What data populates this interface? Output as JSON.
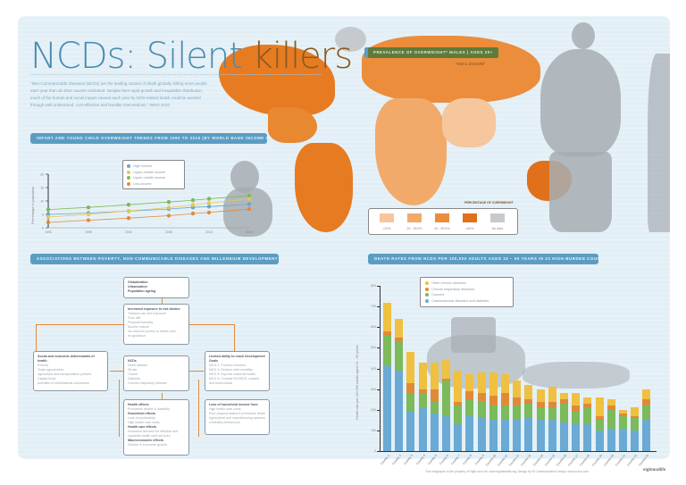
{
  "title": {
    "main": "NCDs: Silent ",
    "accent": "killers"
  },
  "intro": "\"Non-Communicable Diseases (NCDs) are the leading causes of death globally, killing more people each year than all other causes combined. Despite their rapid growth and inequitable distribution, much of the human and social impact caused each year by NCD-related death could be averted through well-understood, cost-effective and feasible interventions.\" WHO 2010",
  "map": {
    "header": "PREVALENCE OF OVERWEIGHT* MALES | AGES 20+",
    "subtitle": "*BMI ≥ 25KG/M²",
    "legend_title": "PERCENTAGE OF OVERWEIGHT",
    "legend": [
      {
        "label": "<20%",
        "color": "#f6c69c"
      },
      {
        "label": "20 - 39.9%",
        "color": "#f2aa6a"
      },
      {
        "label": "40 - 59.9%",
        "color": "#ec8d3c"
      },
      {
        "label": "≥60%",
        "color": "#e0701a"
      },
      {
        "label": "No data",
        "color": "#c6cacd"
      }
    ]
  },
  "line_section": {
    "header": "INFANT AND YOUNG CHILD OVERWEIGHT TRENDS FROM 1990 TO 2015 (BY WORLD BANK INCOME GROUP)"
  },
  "flow_section": {
    "header": "ASSOCIATIONS BETWEEN POVERTY, NON-COMMUNICABLE DISEASES AND MILLENNIUM DEVELOPMENT GOALS",
    "boxes": {
      "globalization": {
        "lines": [
          "Globalization",
          "Urbanization",
          "Population ageing"
        ]
      },
      "exposure": {
        "title": "Increased exposure to risk factors",
        "items": [
          "Tobacco use and exposure",
          "Poor diet",
          "Physical inactivity",
          "Alcohol misuse",
          "No-reduced access to health care",
          "for guidance"
        ]
      },
      "determinants": {
        "title": "Social and economic determinants of health",
        "items": [
          "Poverty",
          "Trade agreements",
          "Agriculture and transportation policies",
          "Capital flows",
          "Activities of multinational companies"
        ]
      },
      "ncds": {
        "title": "NCDs",
        "items": [
          "Heart disease",
          "Stroke",
          "Cancer",
          "Diabetes",
          "Chronic respiratory disease"
        ]
      },
      "mdg": {
        "title": "Limited ability to reach Development Goals",
        "items": [
          "MDG 1: Poverty reduction",
          "MDG 4: Reduce child mortality",
          "MDG 5: Improve maternal health",
          "MDG 6: Combat HIV/AIDS, malaria and tuberculosis"
        ]
      },
      "effects": {
        "title": "Health effects",
        "items": [
          "Premature deaths & disability",
          "Household effects",
          "Loss of productivity",
          "High health care costs",
          "Health care effects",
          "Increased demand for effective and equitable health care services",
          "Macroeconomic effects",
          "Decline in economic growth"
        ]
      },
      "income": {
        "title": "Loss of household income from",
        "items": [
          "High health care costs",
          "Poor physical status & premature death",
          "Agricultural and manufacturing systems",
          "Unhealthy behaviours"
        ]
      }
    }
  },
  "bar_section": {
    "header": "DEATH RATES FROM NCDS PER 100,000 ADULTS AGED 15 – 60 YEARS IN 23 HIGH-BURDEN COUNTRIES"
  },
  "footer": "This infographic is the property of Eight and Life: www.eightandlife.org; Design by SI Communication Design: www.si-lion.com",
  "logo": "eightandlife",
  "chart_data": [
    {
      "type": "line",
      "title": "Infant and young child overweight trends from 1990 to 2015 (by World Bank income group)",
      "xlabel": "",
      "ylabel": "Percentage of population",
      "x": [
        1990,
        1995,
        2000,
        2005,
        2008,
        2010,
        2015
      ],
      "xticks": [
        "1990",
        "1995",
        "2000",
        "2005",
        "2010",
        "2015"
      ],
      "yticks": [
        "0",
        "5",
        "10",
        "15",
        "20"
      ],
      "ylim": [
        0,
        20
      ],
      "legend_position": "top",
      "series": [
        {
          "name": "High income",
          "color": "#6aa4cf",
          "values": [
            5.0,
            5.5,
            6.2,
            7.0,
            7.6,
            7.9,
            8.8
          ]
        },
        {
          "name": "Upper-middle income",
          "color": "#e8c84a",
          "values": [
            4.0,
            5.0,
            6.3,
            7.5,
            8.5,
            9.2,
            10.8
          ]
        },
        {
          "name": "Upper-middle income",
          "color": "#7cba5a",
          "values": [
            6.8,
            7.6,
            8.6,
            9.6,
            10.3,
            10.8,
            12.0
          ]
        },
        {
          "name": "Low-income",
          "color": "#e38a3a",
          "values": [
            2.0,
            2.8,
            3.6,
            4.5,
            5.3,
            5.7,
            7.0
          ]
        }
      ]
    },
    {
      "type": "bar",
      "stacked": true,
      "title": "Death rates from NCDs per 100,000 adults aged 15 – 60 years in 23 high-burden countries",
      "xlabel": "",
      "ylabel": "Death rate per 100,000 adults aged 15 – 60 years",
      "ylim": [
        0,
        800
      ],
      "yticks": [
        "0",
        "100",
        "200",
        "300",
        "400",
        "500",
        "600",
        "700",
        "800"
      ],
      "legend_position": "top-right",
      "categories": [
        "Country 1",
        "Country 2",
        "Country 3",
        "Country 4",
        "Country 5",
        "Country 6",
        "Country 7",
        "Country 8",
        "Country 9",
        "Country 10",
        "Country 11",
        "Country 12",
        "Country 13",
        "Country 14",
        "Country 15",
        "Country 16",
        "Country 17",
        "Country 18",
        "Country 19",
        "Country 20",
        "Country 21",
        "Country 22",
        "Country 23"
      ],
      "series": [
        {
          "name": "Cardiovascular diseases and diabetes",
          "color": "#6aaad4",
          "values": [
            410,
            390,
            190,
            210,
            180,
            170,
            130,
            170,
            160,
            150,
            150,
            150,
            160,
            150,
            150,
            140,
            130,
            130,
            100,
            110,
            110,
            100,
            150
          ]
        },
        {
          "name": "Cancers",
          "color": "#7cba5a",
          "values": [
            150,
            140,
            90,
            70,
            60,
            170,
            90,
            80,
            80,
            70,
            70,
            70,
            70,
            60,
            60,
            90,
            60,
            80,
            50,
            90,
            60,
            60,
            70
          ]
        },
        {
          "name": "Chronic respiratory diseases",
          "color": "#e08a38",
          "values": [
            20,
            20,
            50,
            20,
            60,
            10,
            20,
            40,
            40,
            50,
            60,
            40,
            20,
            30,
            30,
            20,
            30,
            20,
            20,
            20,
            10,
            10,
            30
          ]
        },
        {
          "name": "Other chronic diseases",
          "color": "#f0c040",
          "values": [
            140,
            90,
            150,
            130,
            130,
            90,
            150,
            80,
            100,
            110,
            90,
            80,
            70,
            60,
            70,
            30,
            60,
            30,
            90,
            30,
            20,
            40,
            50
          ]
        }
      ]
    }
  ]
}
